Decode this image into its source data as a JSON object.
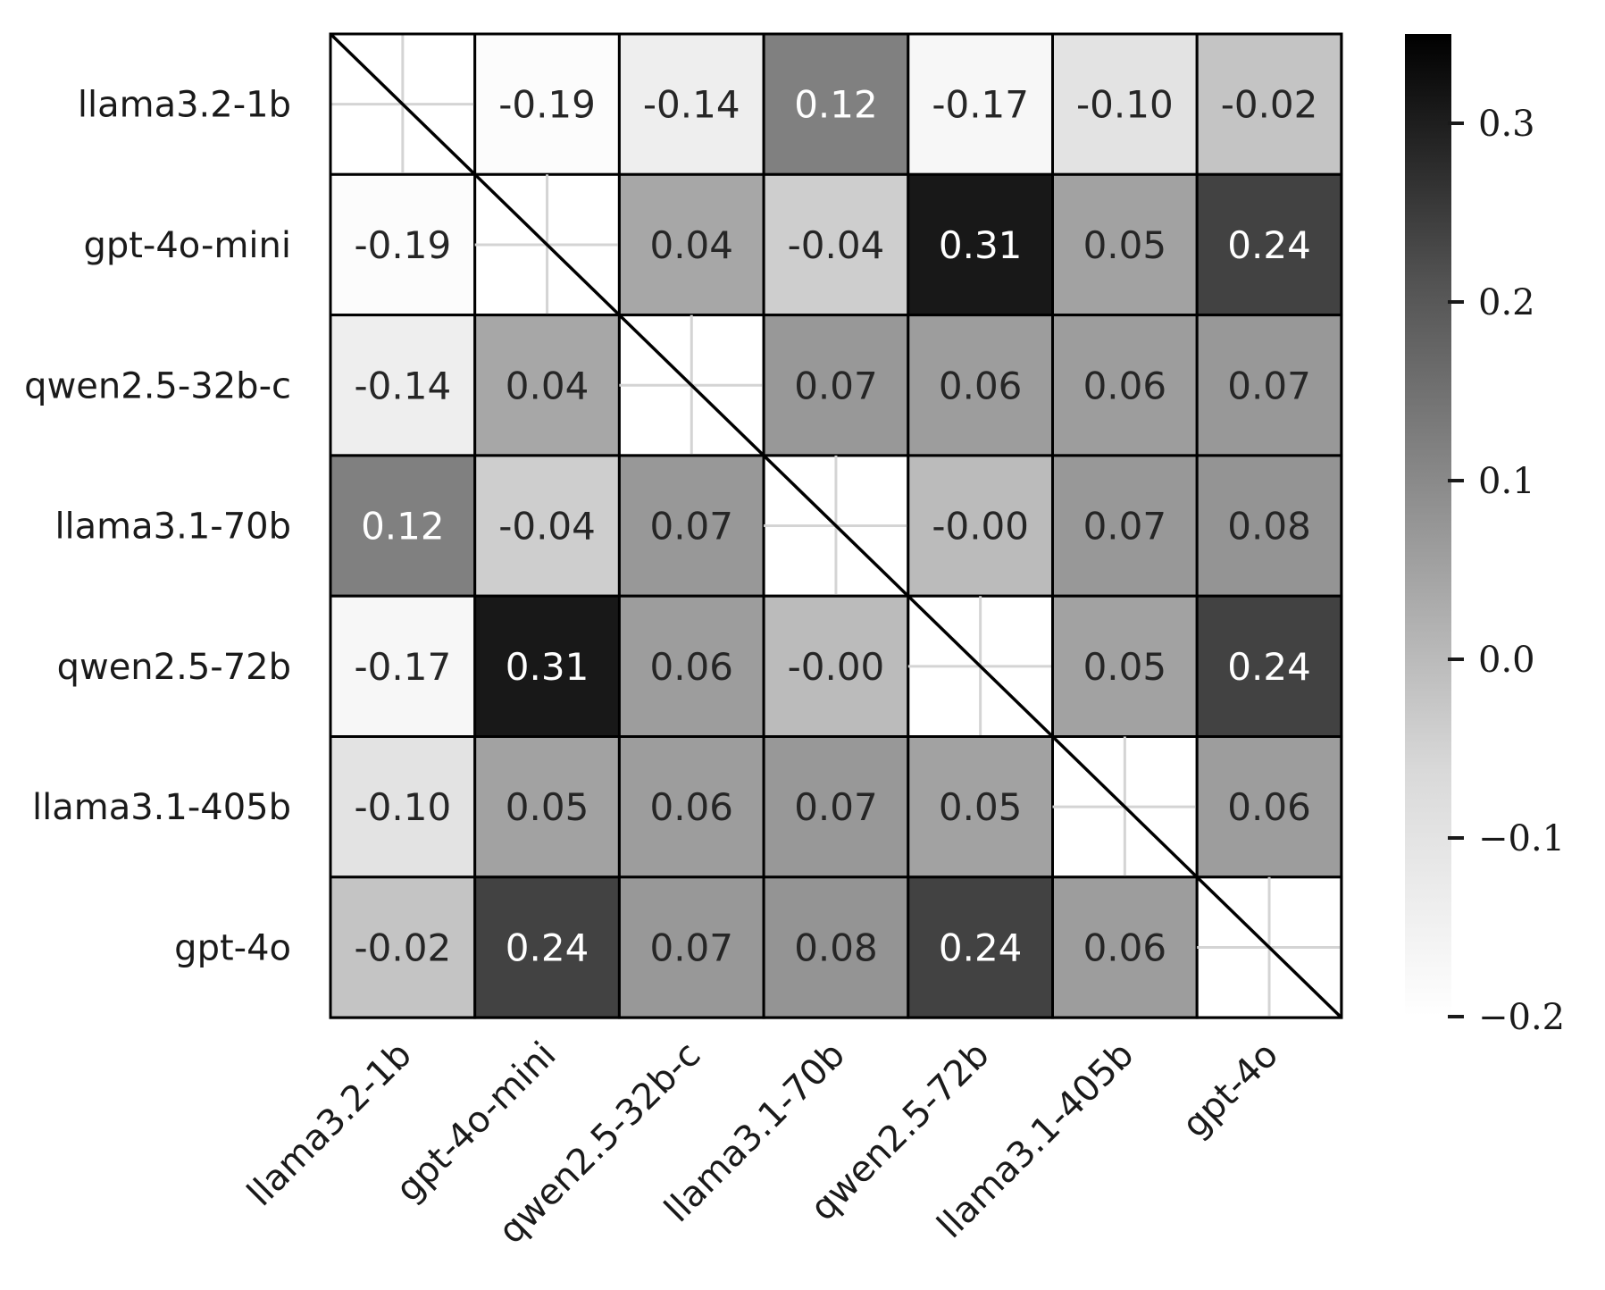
{
  "chart_data": {
    "type": "heatmap",
    "rows": [
      "llama3.2-1b",
      "gpt-4o-mini",
      "qwen2.5-32b-c",
      "llama3.1-70b",
      "qwen2.5-72b",
      "llama3.1-405b",
      "gpt-4o"
    ],
    "cols": [
      "llama3.2-1b",
      "gpt-4o-mini",
      "qwen2.5-32b-c",
      "llama3.1-70b",
      "qwen2.5-72b",
      "llama3.1-405b",
      "gpt-4o"
    ],
    "values": [
      [
        null,
        -0.19,
        -0.14,
        0.12,
        -0.17,
        -0.1,
        -0.02
      ],
      [
        -0.19,
        null,
        0.04,
        -0.04,
        0.31,
        0.05,
        0.24
      ],
      [
        -0.14,
        0.04,
        null,
        0.07,
        0.06,
        0.06,
        0.07
      ],
      [
        0.12,
        -0.04,
        0.07,
        null,
        -0.0,
        0.07,
        0.08
      ],
      [
        -0.17,
        0.31,
        0.06,
        -0.0,
        null,
        0.05,
        0.24
      ],
      [
        -0.1,
        0.05,
        0.06,
        0.07,
        0.05,
        null,
        0.06
      ],
      [
        -0.02,
        0.24,
        0.07,
        0.08,
        0.24,
        0.06,
        null
      ]
    ],
    "labels": [
      [
        "",
        "-0.19",
        "-0.14",
        "0.12",
        "-0.17",
        "-0.10",
        "-0.02"
      ],
      [
        "-0.19",
        "",
        "0.04",
        "-0.04",
        "0.31",
        "0.05",
        "0.24"
      ],
      [
        "-0.14",
        "0.04",
        "",
        "0.07",
        "0.06",
        "0.06",
        "0.07"
      ],
      [
        "0.12",
        "-0.04",
        "0.07",
        "",
        "-0.00",
        "0.07",
        "0.08"
      ],
      [
        "-0.17",
        "0.31",
        "0.06",
        "-0.00",
        "",
        "0.05",
        "0.24"
      ],
      [
        "-0.10",
        "0.05",
        "0.06",
        "0.07",
        "0.05",
        "",
        "0.06"
      ],
      [
        "-0.02",
        "0.24",
        "0.07",
        "0.08",
        "0.24",
        "0.06",
        ""
      ]
    ],
    "colormap": "Greys",
    "vmin": -0.2,
    "vmax": 0.35,
    "colorbar": {
      "ticks": [
        0.3,
        0.2,
        0.1,
        0.0,
        -0.1,
        -0.2
      ],
      "tick_labels": [
        "0.3",
        "0.2",
        "0.1",
        "0.0",
        "−0.1",
        "−0.2"
      ]
    },
    "diagonal": "masked",
    "title": "",
    "xlabel": "",
    "ylabel": ""
  }
}
